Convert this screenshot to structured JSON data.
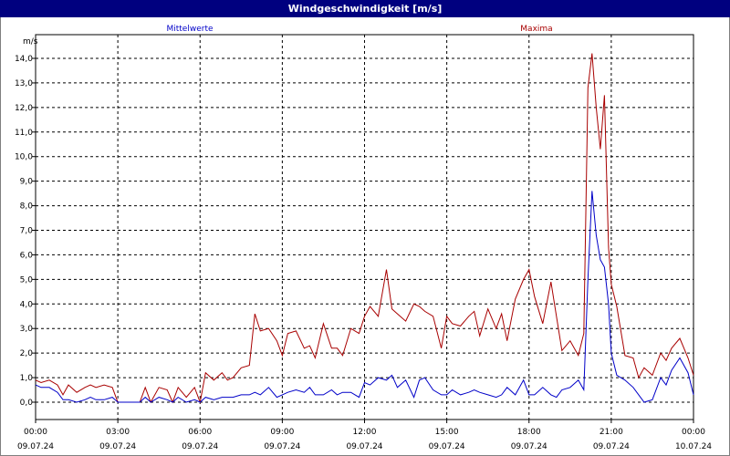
{
  "window": {
    "title": "Windgeschwindigkeit [m/s]"
  },
  "colors": {
    "title_bg": "#00007f",
    "mean": "#0000c8",
    "max": "#a80000",
    "grid": "#000000"
  },
  "chart_data": {
    "type": "line",
    "title": "Windgeschwindigkeit [m/s]",
    "ylabel": "m/s",
    "ylim": [
      -0.5,
      15.0
    ],
    "yticks": [
      "0,0",
      "1,0",
      "2,0",
      "3,0",
      "4,0",
      "5,0",
      "6,0",
      "7,0",
      "8,0",
      "9,0",
      "10,0",
      "11,0",
      "12,0",
      "13,0",
      "14,0"
    ],
    "xlim_hours": [
      0,
      24
    ],
    "xticks": [
      {
        "time": "00:00",
        "date": "09.07.24"
      },
      {
        "time": "03:00",
        "date": "09.07.24"
      },
      {
        "time": "06:00",
        "date": "09.07.24"
      },
      {
        "time": "09:00",
        "date": "09.07.24"
      },
      {
        "time": "12:00",
        "date": "09.07.24"
      },
      {
        "time": "15:00",
        "date": "09.07.24"
      },
      {
        "time": "18:00",
        "date": "09.07.24"
      },
      {
        "time": "21:00",
        "date": "09.07.24"
      },
      {
        "time": "00:00",
        "date": "10.07.24"
      }
    ],
    "grid": true,
    "legend_placement": "top",
    "series": [
      {
        "name": "Mittelwerte",
        "x": [
          0.0,
          0.2,
          0.5,
          0.8,
          1.0,
          1.2,
          1.5,
          1.8,
          2.0,
          2.2,
          2.5,
          2.8,
          3.0,
          3.2,
          3.5,
          3.8,
          4.0,
          4.2,
          4.5,
          4.8,
          5.0,
          5.2,
          5.5,
          5.8,
          6.0,
          6.2,
          6.5,
          6.8,
          7.0,
          7.2,
          7.5,
          7.8,
          8.0,
          8.2,
          8.5,
          8.8,
          9.0,
          9.2,
          9.5,
          9.8,
          10.0,
          10.2,
          10.5,
          10.8,
          11.0,
          11.2,
          11.5,
          11.8,
          12.0,
          12.2,
          12.5,
          12.8,
          13.0,
          13.2,
          13.5,
          13.8,
          14.0,
          14.2,
          14.5,
          14.8,
          15.0,
          15.2,
          15.5,
          15.8,
          16.0,
          16.2,
          16.5,
          16.8,
          17.0,
          17.2,
          17.5,
          17.8,
          18.0,
          18.2,
          18.5,
          18.8,
          19.0,
          19.2,
          19.5,
          19.8,
          20.0,
          20.15,
          20.3,
          20.45,
          20.6,
          20.75,
          20.9,
          21.0,
          21.2,
          21.5,
          21.8,
          22.0,
          22.2,
          22.5,
          22.8,
          23.0,
          23.2,
          23.5,
          23.8,
          24.0
        ],
        "values": [
          0.7,
          0.6,
          0.6,
          0.4,
          0.1,
          0.1,
          0.0,
          0.1,
          0.2,
          0.1,
          0.1,
          0.2,
          0.0,
          0.0,
          0.0,
          0.0,
          0.2,
          0.0,
          0.2,
          0.1,
          0.0,
          0.2,
          0.0,
          0.1,
          0.0,
          0.2,
          0.1,
          0.2,
          0.2,
          0.2,
          0.3,
          0.3,
          0.4,
          0.3,
          0.6,
          0.2,
          0.3,
          0.4,
          0.5,
          0.4,
          0.6,
          0.3,
          0.3,
          0.5,
          0.3,
          0.4,
          0.4,
          0.2,
          0.8,
          0.7,
          1.0,
          0.9,
          1.1,
          0.6,
          0.9,
          0.2,
          0.9,
          1.0,
          0.5,
          0.3,
          0.3,
          0.5,
          0.3,
          0.4,
          0.5,
          0.4,
          0.3,
          0.2,
          0.3,
          0.6,
          0.3,
          0.9,
          0.3,
          0.3,
          0.6,
          0.3,
          0.2,
          0.5,
          0.6,
          0.9,
          0.5,
          5.0,
          8.6,
          6.8,
          5.8,
          5.5,
          4.0,
          2.0,
          1.1,
          0.9,
          0.6,
          0.3,
          0.0,
          0.1,
          1.0,
          0.7,
          1.3,
          1.8,
          1.2,
          0.3
        ]
      },
      {
        "name": "Maxima",
        "x": [
          0.0,
          0.2,
          0.5,
          0.8,
          1.0,
          1.2,
          1.5,
          1.8,
          2.0,
          2.2,
          2.5,
          2.8,
          3.0,
          3.2,
          3.5,
          3.8,
          4.0,
          4.2,
          4.5,
          4.8,
          5.0,
          5.2,
          5.5,
          5.8,
          6.0,
          6.2,
          6.5,
          6.8,
          7.0,
          7.2,
          7.5,
          7.8,
          8.0,
          8.2,
          8.5,
          8.8,
          9.0,
          9.2,
          9.5,
          9.8,
          10.0,
          10.2,
          10.5,
          10.8,
          11.0,
          11.2,
          11.5,
          11.8,
          12.0,
          12.2,
          12.5,
          12.8,
          13.0,
          13.2,
          13.5,
          13.8,
          14.0,
          14.2,
          14.5,
          14.8,
          15.0,
          15.2,
          15.5,
          15.8,
          16.0,
          16.2,
          16.5,
          16.8,
          17.0,
          17.2,
          17.5,
          17.8,
          18.0,
          18.2,
          18.5,
          18.8,
          19.0,
          19.2,
          19.5,
          19.8,
          20.0,
          20.15,
          20.3,
          20.45,
          20.6,
          20.75,
          20.9,
          21.0,
          21.2,
          21.5,
          21.8,
          22.0,
          22.2,
          22.5,
          22.8,
          23.0,
          23.2,
          23.5,
          23.8,
          24.0
        ],
        "values": [
          0.9,
          0.8,
          0.9,
          0.7,
          0.3,
          0.7,
          0.4,
          0.6,
          0.7,
          0.6,
          0.7,
          0.6,
          0.0,
          0.0,
          0.0,
          0.0,
          0.6,
          0.0,
          0.6,
          0.5,
          0.0,
          0.6,
          0.2,
          0.6,
          0.0,
          1.2,
          0.9,
          1.2,
          0.9,
          1.0,
          1.4,
          1.5,
          3.6,
          2.9,
          3.0,
          2.5,
          1.9,
          2.8,
          2.9,
          2.2,
          2.3,
          1.8,
          3.2,
          2.2,
          2.2,
          1.9,
          3.0,
          2.8,
          3.5,
          3.9,
          3.5,
          5.4,
          3.8,
          3.6,
          3.3,
          4.0,
          3.9,
          3.7,
          3.5,
          2.2,
          3.5,
          3.2,
          3.1,
          3.5,
          3.7,
          2.7,
          3.8,
          3.0,
          3.6,
          2.5,
          4.2,
          5.0,
          5.4,
          4.3,
          3.2,
          4.9,
          3.5,
          2.1,
          2.5,
          1.9,
          2.8,
          12.8,
          14.2,
          12.0,
          10.3,
          12.5,
          6.3,
          4.8,
          3.9,
          1.9,
          1.8,
          1.0,
          1.4,
          1.1,
          2.0,
          1.7,
          2.2,
          2.6,
          1.8,
          1.1
        ]
      }
    ]
  }
}
